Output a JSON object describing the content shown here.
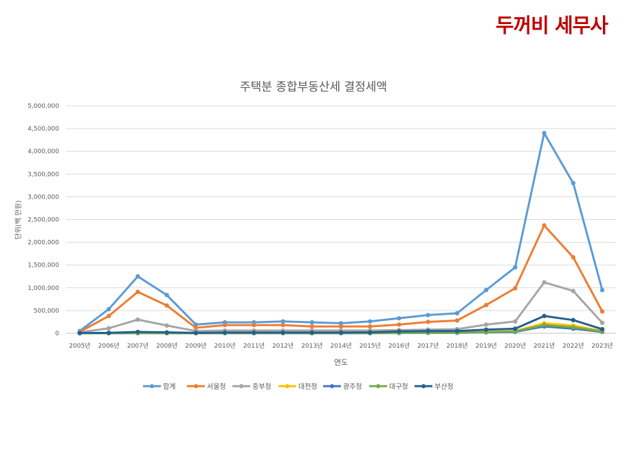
{
  "brand": "두꺼비 세무사",
  "chart_data": {
    "type": "line",
    "title": "주택분 종합부동산세 결정세액",
    "xlabel": "연도",
    "ylabel": "단위(백 만원)",
    "ylim": [
      0,
      5000000
    ],
    "yticks": [
      "0",
      "500,000",
      "1,000,000",
      "1,500,000",
      "2,000,000",
      "2,500,000",
      "3,000,000",
      "3,500,000",
      "4,000,000",
      "4,500,000",
      "5,000,000"
    ],
    "categories": [
      "2005년",
      "2006년",
      "2007년",
      "2008년",
      "2009년",
      "2010년",
      "2011년",
      "2012년",
      "2013년",
      "2014년",
      "2015년",
      "2016년",
      "2017년",
      "2018년",
      "2019년",
      "2020년",
      "2021년",
      "2022년",
      "2023년"
    ],
    "legend_position": "bottom",
    "grid": true,
    "series": [
      {
        "name": "합계",
        "color": "#5b9bd5",
        "values": [
          50000,
          530000,
          1250000,
          840000,
          190000,
          240000,
          240000,
          260000,
          240000,
          220000,
          260000,
          330000,
          400000,
          440000,
          950000,
          1450000,
          4400000,
          3300000,
          950000
        ]
      },
      {
        "name": "서울청",
        "color": "#ed7d31",
        "values": [
          30000,
          380000,
          910000,
          610000,
          120000,
          180000,
          180000,
          180000,
          150000,
          150000,
          150000,
          190000,
          250000,
          280000,
          620000,
          990000,
          2370000,
          1670000,
          480000
        ]
      },
      {
        "name": "중부청",
        "color": "#a5a5a5",
        "values": [
          20000,
          110000,
          300000,
          170000,
          50000,
          60000,
          60000,
          60000,
          60000,
          60000,
          60000,
          70000,
          80000,
          90000,
          190000,
          260000,
          1120000,
          930000,
          230000
        ]
      },
      {
        "name": "대전청",
        "color": "#ffc000",
        "values": [
          0,
          2000,
          5000,
          3000,
          2000,
          3000,
          3000,
          3000,
          3000,
          3000,
          4000,
          8000,
          12000,
          15000,
          30000,
          50000,
          220000,
          170000,
          50000
        ]
      },
      {
        "name": "광주청",
        "color": "#4472c4",
        "values": [
          0,
          1000,
          3000,
          2000,
          1000,
          2000,
          2000,
          2000,
          2000,
          2000,
          3000,
          5000,
          8000,
          10000,
          20000,
          30000,
          150000,
          100000,
          30000
        ]
      },
      {
        "name": "대구청",
        "color": "#70ad47",
        "values": [
          0,
          2000,
          4000,
          3000,
          2000,
          3000,
          3000,
          3000,
          3000,
          3000,
          4000,
          8000,
          12000,
          15000,
          25000,
          40000,
          180000,
          130000,
          40000
        ]
      },
      {
        "name": "부산청",
        "color": "#255e91",
        "values": [
          5000,
          10000,
          30000,
          20000,
          10000,
          15000,
          15000,
          15000,
          15000,
          15000,
          20000,
          40000,
          50000,
          50000,
          80000,
          100000,
          380000,
          290000,
          90000
        ]
      }
    ]
  }
}
